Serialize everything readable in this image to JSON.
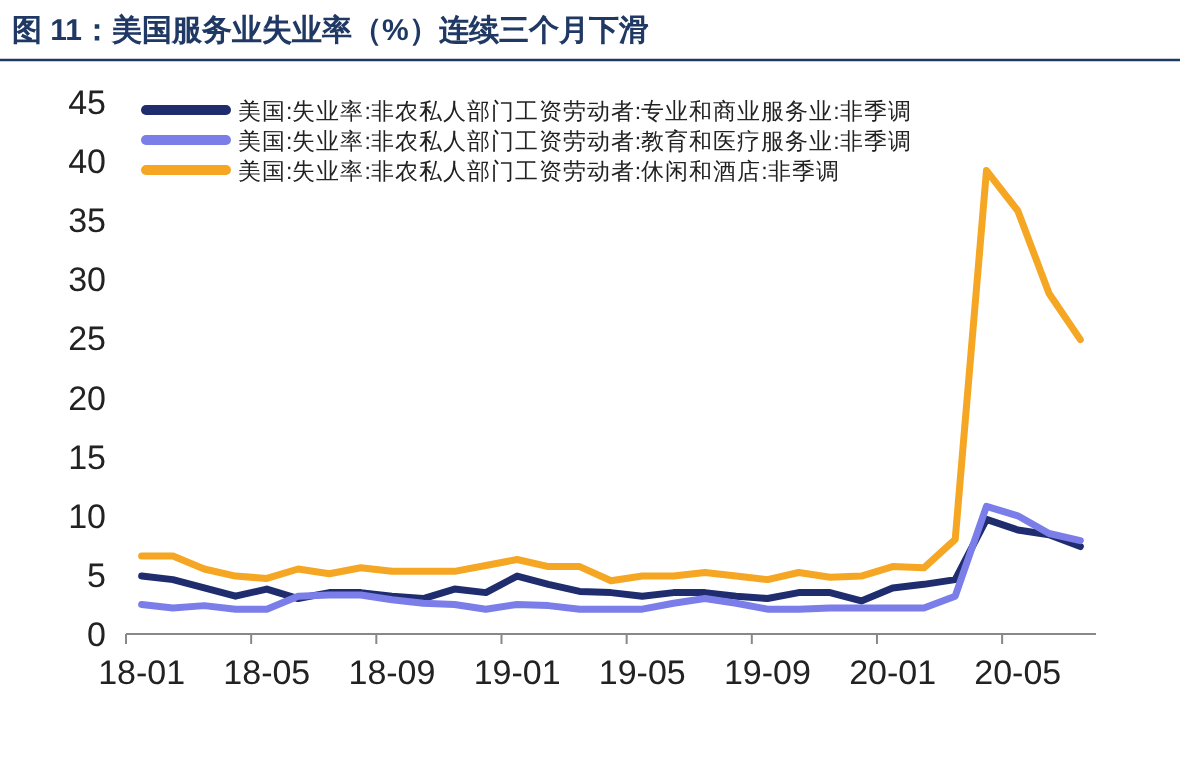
{
  "chart_data": {
    "type": "line",
    "title": "图 11：美国服务业失业率（%）连续三个月下滑",
    "categories": [
      "18-01",
      null,
      null,
      null,
      "18-05",
      null,
      null,
      null,
      "18-09",
      null,
      null,
      null,
      "19-01",
      null,
      null,
      null,
      "19-05",
      null,
      null,
      null,
      "19-09",
      null,
      null,
      null,
      "20-01",
      null,
      null,
      null,
      "20-05",
      null,
      null
    ],
    "series": [
      {
        "name": "美国:失业率:非农私人部门工资劳动者:专业和商业服务业:非季调",
        "color": "#1f2d6e",
        "values": [
          4.9,
          4.6,
          3.9,
          3.2,
          3.8,
          3.0,
          3.5,
          3.5,
          3.2,
          3.0,
          3.8,
          3.5,
          4.9,
          4.2,
          3.6,
          3.5,
          3.2,
          3.5,
          3.5,
          3.2,
          3.0,
          3.5,
          3.5,
          2.8,
          3.9,
          4.2,
          4.6,
          9.7,
          8.8,
          8.4,
          7.4
        ]
      },
      {
        "name": "美国:失业率:非农私人部门工资劳动者:教育和医疗服务业:非季调",
        "color": "#7b7ee8",
        "values": [
          2.5,
          2.2,
          2.4,
          2.1,
          2.1,
          3.2,
          3.3,
          3.3,
          2.9,
          2.6,
          2.5,
          2.1,
          2.5,
          2.4,
          2.1,
          2.1,
          2.1,
          2.6,
          3.0,
          2.6,
          2.1,
          2.1,
          2.2,
          2.2,
          2.2,
          2.2,
          3.2,
          10.8,
          10.0,
          8.5,
          7.9
        ]
      },
      {
        "name": "美国:失业率:非农私人部门工资劳动者:休闲和酒店:非季调",
        "color": "#f5a623",
        "values": [
          6.6,
          6.6,
          5.5,
          4.9,
          4.7,
          5.5,
          5.1,
          5.6,
          5.3,
          5.3,
          5.3,
          5.8,
          6.3,
          5.7,
          5.7,
          4.5,
          4.9,
          4.9,
          5.2,
          4.9,
          4.6,
          5.2,
          4.8,
          4.9,
          5.7,
          5.6,
          8.0,
          39.2,
          35.8,
          28.8,
          24.9
        ]
      }
    ],
    "ylim": [
      0,
      45
    ],
    "yticks": [
      0,
      5,
      10,
      15,
      20,
      25,
      30,
      35,
      40,
      45
    ],
    "grid": false,
    "legend": "top left",
    "marker": "none",
    "line_style": "solid"
  }
}
